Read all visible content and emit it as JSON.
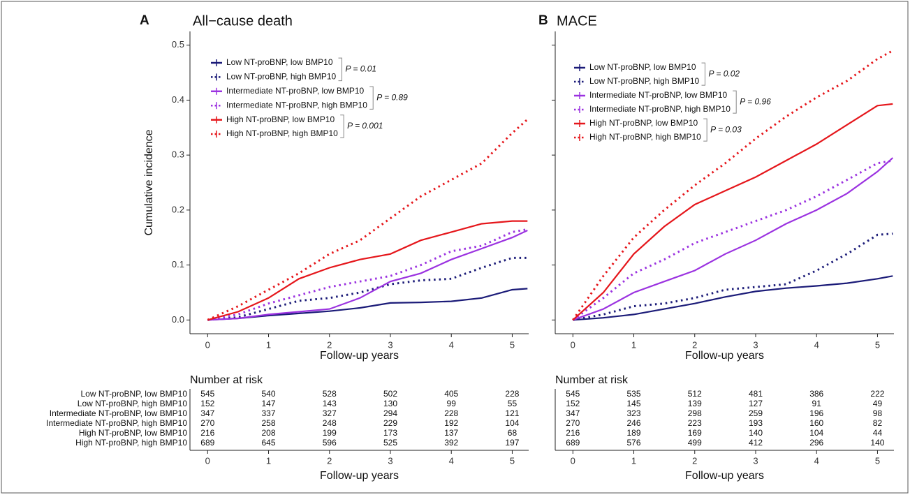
{
  "chart_data": [
    {
      "type": "line",
      "panel": "A",
      "title": "All−cause death",
      "x_label": "Follow-up years",
      "y_label": "Cumulative incidence",
      "x": [
        0,
        0.5,
        1,
        1.5,
        2,
        2.5,
        3,
        3.5,
        4,
        4.5,
        5,
        5.25
      ],
      "xlim": [
        -0.29,
        5.27
      ],
      "ylim": [
        -0.025,
        0.525
      ],
      "xticks": [
        0,
        1,
        2,
        3,
        4,
        5
      ],
      "yticks": [
        {
          "value": 0,
          "label": "0.0"
        },
        0.1,
        0.2,
        0.3,
        0.4,
        0.5
      ],
      "legend": "top-left",
      "series": [
        {
          "name": "Low NT-proBNP, low BMP10",
          "color": "#1b1b78",
          "dash": "solid",
          "values": [
            0,
            0.003,
            0.008,
            0.012,
            0.016,
            0.022,
            0.031,
            0.032,
            0.034,
            0.04,
            0.055,
            0.057
          ]
        },
        {
          "name": "Low NT-proBNP, high BMP10",
          "color": "#1b1b78",
          "dash": "dotted",
          "values": [
            0,
            0.005,
            0.02,
            0.035,
            0.04,
            0.05,
            0.065,
            0.072,
            0.075,
            0.095,
            0.113,
            0.113
          ]
        },
        {
          "name": "Intermediate NT-proBNP, low BMP10",
          "color": "#9b32e0",
          "dash": "solid",
          "values": [
            0,
            0.003,
            0.01,
            0.015,
            0.02,
            0.04,
            0.07,
            0.085,
            0.11,
            0.13,
            0.15,
            0.163
          ]
        },
        {
          "name": "Intermediate NT-proBNP, high BMP10",
          "color": "#9b32e0",
          "dash": "dotted",
          "values": [
            0,
            0.01,
            0.03,
            0.045,
            0.06,
            0.07,
            0.08,
            0.1,
            0.125,
            0.135,
            0.16,
            0.165
          ]
        },
        {
          "name": "High NT-proBNP, low BMP10",
          "color": "#e5161b",
          "dash": "solid",
          "values": [
            0,
            0.015,
            0.04,
            0.075,
            0.095,
            0.11,
            0.12,
            0.145,
            0.16,
            0.175,
            0.18,
            0.18
          ]
        },
        {
          "name": "High NT-proBNP, high BMP10",
          "color": "#e5161b",
          "dash": "dotted",
          "values": [
            0,
            0.025,
            0.055,
            0.085,
            0.12,
            0.145,
            0.185,
            0.225,
            0.255,
            0.285,
            0.34,
            0.365
          ]
        }
      ],
      "p_values": [
        "P = 0.01",
        "P = 0.89",
        "P = 0.001"
      ],
      "risk_table": {
        "title": "Number at risk",
        "counts": [
          [
            545,
            540,
            528,
            502,
            405,
            228
          ],
          [
            152,
            147,
            143,
            130,
            99,
            55
          ],
          [
            347,
            337,
            327,
            294,
            228,
            121
          ],
          [
            270,
            258,
            248,
            229,
            192,
            104
          ],
          [
            216,
            208,
            199,
            173,
            137,
            68
          ],
          [
            689,
            645,
            596,
            525,
            392,
            197
          ]
        ]
      }
    },
    {
      "type": "line",
      "panel": "B",
      "title": "MACE",
      "x_label": "Follow-up years",
      "x": [
        0,
        0.5,
        1,
        1.5,
        2,
        2.5,
        3,
        3.5,
        4,
        4.5,
        5,
        5.25
      ],
      "xlim": [
        -0.29,
        5.27
      ],
      "ylim": [
        -0.025,
        0.525
      ],
      "xticks": [
        0,
        1,
        2,
        3,
        4,
        5
      ],
      "legend": "top-left",
      "series": [
        {
          "name": "Low NT-proBNP, low BMP10",
          "color": "#1b1b78",
          "dash": "solid",
          "values": [
            0,
            0.004,
            0.01,
            0.02,
            0.03,
            0.042,
            0.052,
            0.058,
            0.062,
            0.067,
            0.075,
            0.08
          ]
        },
        {
          "name": "Low NT-proBNP, high BMP10",
          "color": "#1b1b78",
          "dash": "dotted",
          "values": [
            0,
            0.01,
            0.025,
            0.03,
            0.04,
            0.055,
            0.06,
            0.065,
            0.09,
            0.12,
            0.155,
            0.157
          ]
        },
        {
          "name": "Intermediate NT-proBNP, low BMP10",
          "color": "#9b32e0",
          "dash": "solid",
          "values": [
            0,
            0.02,
            0.05,
            0.07,
            0.09,
            0.12,
            0.145,
            0.175,
            0.2,
            0.23,
            0.27,
            0.295
          ]
        },
        {
          "name": "Intermediate NT-proBNP, high BMP10",
          "color": "#9b32e0",
          "dash": "dotted",
          "values": [
            0,
            0.04,
            0.085,
            0.11,
            0.14,
            0.16,
            0.18,
            0.2,
            0.225,
            0.255,
            0.285,
            0.29
          ]
        },
        {
          "name": "High NT-proBNP, low BMP10",
          "color": "#e5161b",
          "dash": "solid",
          "values": [
            0,
            0.05,
            0.12,
            0.17,
            0.21,
            0.235,
            0.26,
            0.29,
            0.32,
            0.355,
            0.39,
            0.393
          ]
        },
        {
          "name": "High NT-proBNP, high BMP10",
          "color": "#e5161b",
          "dash": "dotted",
          "values": [
            0,
            0.08,
            0.15,
            0.2,
            0.245,
            0.285,
            0.33,
            0.37,
            0.405,
            0.435,
            0.475,
            0.49
          ]
        }
      ],
      "p_values": [
        "P = 0.02",
        "P = 0.96",
        "P = 0.03"
      ],
      "risk_table": {
        "title": "Number at risk",
        "counts": [
          [
            545,
            535,
            512,
            481,
            386,
            222
          ],
          [
            152,
            145,
            139,
            127,
            91,
            49
          ],
          [
            347,
            323,
            298,
            259,
            196,
            98
          ],
          [
            270,
            246,
            223,
            193,
            160,
            82
          ],
          [
            216,
            189,
            169,
            140,
            104,
            44
          ],
          [
            689,
            576,
            499,
            412,
            296,
            140
          ]
        ]
      }
    }
  ]
}
